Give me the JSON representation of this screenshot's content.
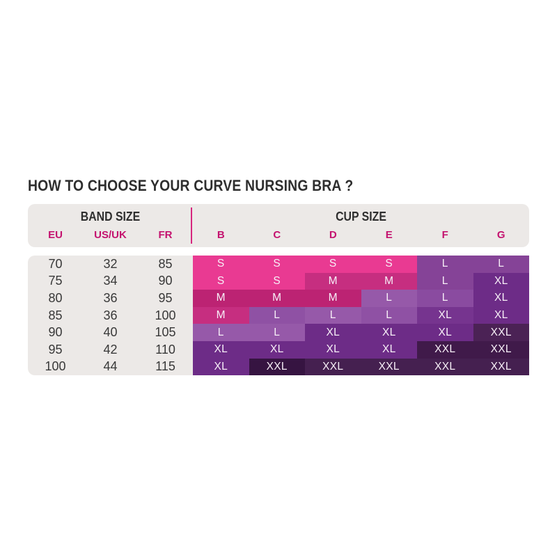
{
  "title": "HOW TO CHOOSE YOUR CURVE NURSING BRA ?",
  "chart_data": {
    "type": "table",
    "title": "HOW TO CHOOSE YOUR CURVE NURSING BRA ?",
    "column_groups": [
      {
        "label": "BAND SIZE",
        "columns": [
          "EU",
          "US/UK",
          "FR"
        ]
      },
      {
        "label": "CUP SIZE",
        "columns": [
          "B",
          "C",
          "D",
          "E",
          "F",
          "G"
        ]
      }
    ],
    "band_rows": [
      [
        "70",
        "32",
        "85"
      ],
      [
        "75",
        "34",
        "90"
      ],
      [
        "80",
        "36",
        "95"
      ],
      [
        "85",
        "36",
        "100"
      ],
      [
        "90",
        "40",
        "105"
      ],
      [
        "95",
        "42",
        "110"
      ],
      [
        "100",
        "44",
        "115"
      ]
    ],
    "cup_rows": [
      [
        {
          "label": "S",
          "color": "#E93A92"
        },
        {
          "label": "S",
          "color": "#E93A92"
        },
        {
          "label": "S",
          "color": "#E93A92"
        },
        {
          "label": "S",
          "color": "#E93A92"
        },
        {
          "label": "L",
          "color": "#854397"
        },
        {
          "label": "L",
          "color": "#854397"
        }
      ],
      [
        {
          "label": "S",
          "color": "#E93A92"
        },
        {
          "label": "S",
          "color": "#E93A92"
        },
        {
          "label": "M",
          "color": "#C62E80"
        },
        {
          "label": "M",
          "color": "#C62E80"
        },
        {
          "label": "L",
          "color": "#854397"
        },
        {
          "label": "XL",
          "color": "#6D2C87"
        }
      ],
      [
        {
          "label": "M",
          "color": "#BC2373"
        },
        {
          "label": "M",
          "color": "#BC2373"
        },
        {
          "label": "M",
          "color": "#BC2373"
        },
        {
          "label": "L",
          "color": "#9659A9"
        },
        {
          "label": "L",
          "color": "#8A4BA0"
        },
        {
          "label": "XL",
          "color": "#6D2C87"
        }
      ],
      [
        {
          "label": "M",
          "color": "#C62E80"
        },
        {
          "label": "L",
          "color": "#8F51A4"
        },
        {
          "label": "L",
          "color": "#9659A9"
        },
        {
          "label": "L",
          "color": "#8F51A4"
        },
        {
          "label": "XL",
          "color": "#76348F"
        },
        {
          "label": "XL",
          "color": "#6D2C87"
        }
      ],
      [
        {
          "label": "L",
          "color": "#9659A9"
        },
        {
          "label": "L",
          "color": "#9659A9"
        },
        {
          "label": "XL",
          "color": "#6D2C87"
        },
        {
          "label": "XL",
          "color": "#6D2C87"
        },
        {
          "label": "XL",
          "color": "#6D2C87"
        },
        {
          "label": "XXL",
          "color": "#4B2255"
        }
      ],
      [
        {
          "label": "XL",
          "color": "#6D2C87"
        },
        {
          "label": "XL",
          "color": "#6D2C87"
        },
        {
          "label": "XL",
          "color": "#6D2C87"
        },
        {
          "label": "XL",
          "color": "#6D2C87"
        },
        {
          "label": "XXL",
          "color": "#401A4A"
        },
        {
          "label": "XXL",
          "color": "#401A4A"
        }
      ],
      [
        {
          "label": "XL",
          "color": "#6D2C87"
        },
        {
          "label": "XXL",
          "color": "#361441"
        },
        {
          "label": "XXL",
          "color": "#452050"
        },
        {
          "label": "XXL",
          "color": "#452050"
        },
        {
          "label": "XXL",
          "color": "#452050"
        },
        {
          "label": "XXL",
          "color": "#452050"
        }
      ]
    ],
    "size_palette": {
      "S": "#E93A92",
      "M": "#C12679",
      "L": "#8F51A4",
      "XL": "#6D2C87",
      "XXL": "#452050"
    }
  },
  "style": {
    "accent_pink": "#C4126F",
    "divider_pink": "#D6267E",
    "panel_gray": "#ECE9E7",
    "title_color": "#2E2E2E",
    "number_color": "#383838",
    "cell_text_color": "#F7EFF7",
    "background": "#FFFFFF"
  }
}
